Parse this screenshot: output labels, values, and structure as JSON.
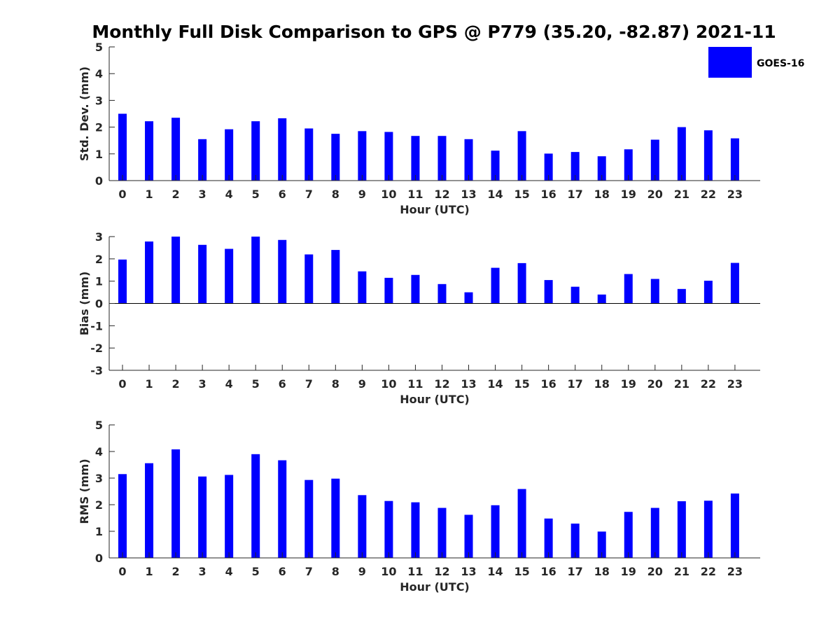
{
  "title": "Monthly Full Disk Comparison to GPS @ P779 (35.20, -82.87) 2021-11",
  "colors": {
    "bar": "#0000ff",
    "axis": "#262626",
    "background": "#ffffff"
  },
  "chart_data": [
    {
      "type": "bar",
      "ylabel": "Std. Dev. (mm)",
      "xlabel": "Hour (UTC)",
      "ylim": [
        0,
        5
      ],
      "yticks": [
        0,
        1,
        2,
        3,
        4,
        5
      ],
      "categories": [
        "0",
        "1",
        "2",
        "3",
        "4",
        "5",
        "6",
        "7",
        "8",
        "9",
        "10",
        "11",
        "12",
        "13",
        "14",
        "15",
        "16",
        "17",
        "18",
        "19",
        "20",
        "21",
        "22",
        "23"
      ],
      "series": [
        {
          "name": "GOES-16",
          "values": [
            2.5,
            2.22,
            2.35,
            1.55,
            1.92,
            2.22,
            2.33,
            1.95,
            1.75,
            1.85,
            1.82,
            1.67,
            1.67,
            1.55,
            1.12,
            1.85,
            1.01,
            1.07,
            0.91,
            1.17,
            1.53,
            2.0,
            1.88,
            1.58
          ]
        }
      ],
      "legend": {
        "entry": "GOES-16",
        "placement": "top-right"
      }
    },
    {
      "type": "bar",
      "ylabel": "Bias (mm)",
      "xlabel": "Hour (UTC)",
      "ylim": [
        -3,
        3
      ],
      "yticks": [
        -3,
        -2,
        -1,
        0,
        1,
        2,
        3
      ],
      "categories": [
        "0",
        "1",
        "2",
        "3",
        "4",
        "5",
        "6",
        "7",
        "8",
        "9",
        "10",
        "11",
        "12",
        "13",
        "14",
        "15",
        "16",
        "17",
        "18",
        "19",
        "20",
        "21",
        "22",
        "23"
      ],
      "series": [
        {
          "name": "GOES-16",
          "values": [
            1.97,
            2.78,
            3.0,
            2.63,
            2.45,
            3.0,
            2.85,
            2.2,
            2.4,
            1.44,
            1.15,
            1.28,
            0.87,
            0.5,
            1.6,
            1.81,
            1.05,
            0.75,
            0.4,
            1.32,
            1.1,
            0.65,
            1.02,
            1.82
          ]
        }
      ]
    },
    {
      "type": "bar",
      "ylabel": "RMS (mm)",
      "xlabel": "Hour (UTC)",
      "ylim": [
        0,
        5
      ],
      "yticks": [
        0,
        1,
        2,
        3,
        4,
        5
      ],
      "categories": [
        "0",
        "1",
        "2",
        "3",
        "4",
        "5",
        "6",
        "7",
        "8",
        "9",
        "10",
        "11",
        "12",
        "13",
        "14",
        "15",
        "16",
        "17",
        "18",
        "19",
        "20",
        "21",
        "22",
        "23"
      ],
      "series": [
        {
          "name": "GOES-16",
          "values": [
            3.15,
            3.56,
            4.08,
            3.06,
            3.12,
            3.9,
            3.67,
            2.93,
            2.98,
            2.36,
            2.14,
            2.09,
            1.88,
            1.62,
            1.98,
            2.59,
            1.48,
            1.29,
            0.99,
            1.73,
            1.88,
            2.13,
            2.15,
            2.42
          ]
        }
      ]
    }
  ]
}
